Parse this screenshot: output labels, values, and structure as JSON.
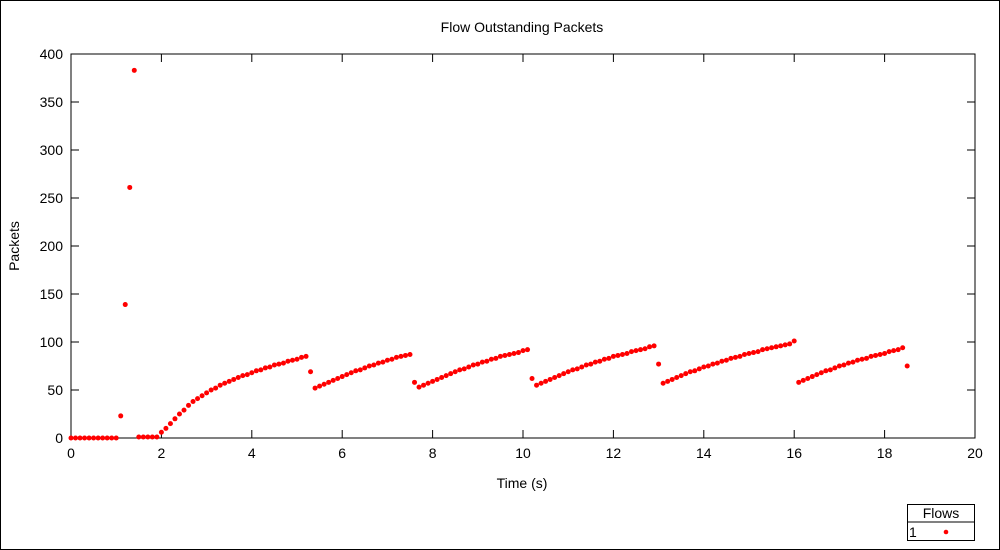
{
  "chart_data": {
    "type": "scatter",
    "title": "Flow Outstanding Packets",
    "xlabel": "Time (s)",
    "ylabel": "Packets",
    "xlim": [
      0,
      20
    ],
    "ylim": [
      0,
      400
    ],
    "xticks": [
      0,
      2,
      4,
      6,
      8,
      10,
      12,
      14,
      16,
      18,
      20
    ],
    "yticks": [
      0,
      50,
      100,
      150,
      200,
      250,
      300,
      350,
      400
    ],
    "grid": false,
    "legend": {
      "title": "Flows",
      "placement": "bottom-right"
    },
    "series": [
      {
        "name": "1",
        "color": "#ff0000",
        "points": [
          [
            0.0,
            0
          ],
          [
            0.1,
            0
          ],
          [
            0.2,
            0
          ],
          [
            0.3,
            0
          ],
          [
            0.4,
            0
          ],
          [
            0.5,
            0
          ],
          [
            0.6,
            0
          ],
          [
            0.7,
            0
          ],
          [
            0.8,
            0
          ],
          [
            0.9,
            0
          ],
          [
            1.0,
            0
          ],
          [
            1.1,
            23
          ],
          [
            1.2,
            139
          ],
          [
            1.3,
            261
          ],
          [
            1.4,
            383
          ],
          [
            1.5,
            1
          ],
          [
            1.6,
            1
          ],
          [
            1.7,
            1
          ],
          [
            1.8,
            1
          ],
          [
            1.9,
            1
          ],
          [
            2.0,
            6
          ],
          [
            2.1,
            10
          ],
          [
            2.2,
            15
          ],
          [
            2.3,
            20
          ],
          [
            2.4,
            25
          ],
          [
            2.5,
            29
          ],
          [
            2.6,
            34
          ],
          [
            2.7,
            38
          ],
          [
            2.8,
            41
          ],
          [
            2.9,
            44
          ],
          [
            3.0,
            47
          ],
          [
            3.1,
            50
          ],
          [
            3.2,
            52
          ],
          [
            3.3,
            55
          ],
          [
            3.4,
            57
          ],
          [
            3.5,
            59
          ],
          [
            3.6,
            61
          ],
          [
            3.7,
            63
          ],
          [
            3.8,
            65
          ],
          [
            3.9,
            66
          ],
          [
            4.0,
            68
          ],
          [
            4.1,
            70
          ],
          [
            4.2,
            71
          ],
          [
            4.3,
            73
          ],
          [
            4.4,
            74
          ],
          [
            4.5,
            76
          ],
          [
            4.6,
            77
          ],
          [
            4.7,
            78
          ],
          [
            4.8,
            80
          ],
          [
            4.9,
            81
          ],
          [
            5.0,
            82
          ],
          [
            5.1,
            84
          ],
          [
            5.2,
            85
          ],
          [
            5.3,
            69
          ],
          [
            5.4,
            52
          ],
          [
            5.5,
            54
          ],
          [
            5.6,
            56
          ],
          [
            5.7,
            58
          ],
          [
            5.8,
            60
          ],
          [
            5.9,
            62
          ],
          [
            6.0,
            64
          ],
          [
            6.1,
            66
          ],
          [
            6.2,
            68
          ],
          [
            6.3,
            70
          ],
          [
            6.4,
            71
          ],
          [
            6.5,
            73
          ],
          [
            6.6,
            75
          ],
          [
            6.7,
            76
          ],
          [
            6.8,
            78
          ],
          [
            6.9,
            79
          ],
          [
            7.0,
            81
          ],
          [
            7.1,
            82
          ],
          [
            7.2,
            84
          ],
          [
            7.3,
            85
          ],
          [
            7.4,
            86
          ],
          [
            7.5,
            87
          ],
          [
            7.6,
            58
          ],
          [
            7.7,
            53
          ],
          [
            7.8,
            55
          ],
          [
            7.9,
            57
          ],
          [
            8.0,
            59
          ],
          [
            8.1,
            61
          ],
          [
            8.2,
            63
          ],
          [
            8.3,
            65
          ],
          [
            8.4,
            67
          ],
          [
            8.5,
            69
          ],
          [
            8.6,
            71
          ],
          [
            8.7,
            72
          ],
          [
            8.8,
            74
          ],
          [
            8.9,
            76
          ],
          [
            9.0,
            77
          ],
          [
            9.1,
            79
          ],
          [
            9.2,
            80
          ],
          [
            9.3,
            82
          ],
          [
            9.4,
            83
          ],
          [
            9.5,
            85
          ],
          [
            9.6,
            86
          ],
          [
            9.7,
            87
          ],
          [
            9.8,
            88
          ],
          [
            9.9,
            89
          ],
          [
            10.0,
            91
          ],
          [
            10.1,
            92
          ],
          [
            10.2,
            62
          ],
          [
            10.3,
            55
          ],
          [
            10.4,
            57
          ],
          [
            10.5,
            59
          ],
          [
            10.6,
            61
          ],
          [
            10.7,
            63
          ],
          [
            10.8,
            65
          ],
          [
            10.9,
            67
          ],
          [
            11.0,
            69
          ],
          [
            11.1,
            71
          ],
          [
            11.2,
            72
          ],
          [
            11.3,
            74
          ],
          [
            11.4,
            76
          ],
          [
            11.5,
            77
          ],
          [
            11.6,
            79
          ],
          [
            11.7,
            80
          ],
          [
            11.8,
            82
          ],
          [
            11.9,
            83
          ],
          [
            12.0,
            85
          ],
          [
            12.1,
            86
          ],
          [
            12.2,
            87
          ],
          [
            12.3,
            88
          ],
          [
            12.4,
            90
          ],
          [
            12.5,
            91
          ],
          [
            12.6,
            92
          ],
          [
            12.7,
            93
          ],
          [
            12.8,
            95
          ],
          [
            12.9,
            96
          ],
          [
            13.0,
            77
          ],
          [
            13.1,
            57
          ],
          [
            13.2,
            59
          ],
          [
            13.3,
            61
          ],
          [
            13.4,
            63
          ],
          [
            13.5,
            65
          ],
          [
            13.6,
            67
          ],
          [
            13.7,
            69
          ],
          [
            13.8,
            70
          ],
          [
            13.9,
            72
          ],
          [
            14.0,
            74
          ],
          [
            14.1,
            75
          ],
          [
            14.2,
            77
          ],
          [
            14.3,
            78
          ],
          [
            14.4,
            80
          ],
          [
            14.5,
            81
          ],
          [
            14.6,
            83
          ],
          [
            14.7,
            84
          ],
          [
            14.8,
            85
          ],
          [
            14.9,
            87
          ],
          [
            15.0,
            88
          ],
          [
            15.1,
            89
          ],
          [
            15.2,
            90
          ],
          [
            15.3,
            92
          ],
          [
            15.4,
            93
          ],
          [
            15.5,
            94
          ],
          [
            15.6,
            95
          ],
          [
            15.7,
            96
          ],
          [
            15.8,
            97
          ],
          [
            15.9,
            98
          ],
          [
            16.0,
            101
          ],
          [
            16.1,
            58
          ],
          [
            16.2,
            60
          ],
          [
            16.3,
            62
          ],
          [
            16.4,
            64
          ],
          [
            16.5,
            66
          ],
          [
            16.6,
            68
          ],
          [
            16.7,
            70
          ],
          [
            16.8,
            71
          ],
          [
            16.9,
            73
          ],
          [
            17.0,
            75
          ],
          [
            17.1,
            76
          ],
          [
            17.2,
            78
          ],
          [
            17.3,
            79
          ],
          [
            17.4,
            81
          ],
          [
            17.5,
            82
          ],
          [
            17.6,
            83
          ],
          [
            17.7,
            85
          ],
          [
            17.8,
            86
          ],
          [
            17.9,
            87
          ],
          [
            18.0,
            88
          ],
          [
            18.1,
            90
          ],
          [
            18.2,
            91
          ],
          [
            18.3,
            92
          ],
          [
            18.4,
            94
          ],
          [
            18.5,
            75
          ]
        ]
      }
    ]
  }
}
